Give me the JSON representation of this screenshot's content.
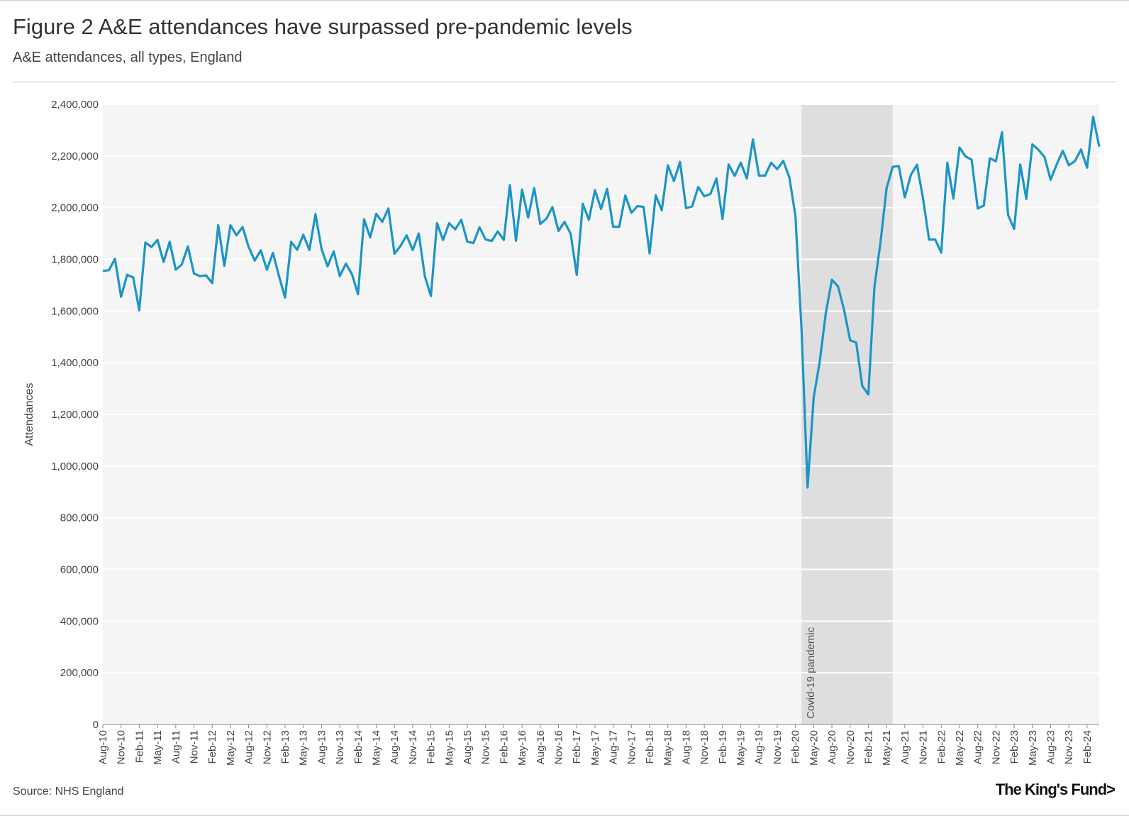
{
  "title": "Figure 2 A&E attendances have surpassed pre-pandemic levels",
  "subtitle": "A&E attendances, all types, England",
  "source": "Source: NHS England",
  "logo_text": "The King's Fund>",
  "colors": {
    "line": "#1b95c7",
    "band": "#dedede",
    "plot_bg": "#f5f5f5",
    "grid": "#ffffff"
  },
  "chart_data": {
    "type": "line",
    "title": "Figure 2 A&E attendances have surpassed pre-pandemic levels",
    "subtitle": "A&E attendances, all types, England",
    "xlabel": "",
    "ylabel": "Attendances",
    "ylim": [
      0,
      2400000
    ],
    "yticks": [
      0,
      200000,
      400000,
      600000,
      800000,
      1000000,
      1200000,
      1400000,
      1600000,
      1800000,
      2000000,
      2200000,
      2400000
    ],
    "ytick_labels": [
      "0",
      "200,000",
      "400,000",
      "600,000",
      "800,000",
      "1,000,000",
      "1,200,000",
      "1,400,000",
      "1,600,000",
      "1,800,000",
      "2,000,000",
      "2,200,000",
      "2,400,000"
    ],
    "x_start": "Aug-10",
    "x_end": "Apr-24",
    "xtick_labels": [
      "Aug-10",
      "Nov-10",
      "Feb-11",
      "May-11",
      "Aug-11",
      "Nov-11",
      "Feb-12",
      "May-12",
      "Aug-12",
      "Nov-12",
      "Feb-13",
      "May-13",
      "Aug-13",
      "Nov-13",
      "Feb-14",
      "May-14",
      "Aug-14",
      "Nov-14",
      "Feb-15",
      "May-15",
      "Aug-15",
      "Nov-15",
      "Feb-16",
      "May-16",
      "Aug-16",
      "Nov-16",
      "Feb-17",
      "May-17",
      "Aug-17",
      "Nov-17",
      "Feb-18",
      "May-18",
      "Aug-18",
      "Nov-18",
      "Feb-19",
      "May-19",
      "Aug-19",
      "Nov-19",
      "Feb-20",
      "May-20",
      "Aug-20",
      "Nov-20",
      "Feb-21",
      "May-21",
      "Aug-21",
      "Nov-21",
      "Feb-22",
      "May-22",
      "Aug-22",
      "Nov-22",
      "Feb-23",
      "May-23",
      "Aug-23",
      "Nov-23",
      "Feb-24"
    ],
    "shaded_region": {
      "label": "Covid-19 pandemic",
      "start_index": 115,
      "end_index": 130
    },
    "series": [
      {
        "name": "A&E attendances",
        "values": [
          1755000,
          1758000,
          1802000,
          1655000,
          1740000,
          1730000,
          1603000,
          1865000,
          1848000,
          1875000,
          1790000,
          1868000,
          1760000,
          1780000,
          1850000,
          1745000,
          1735000,
          1738000,
          1708000,
          1932000,
          1775000,
          1932000,
          1893000,
          1925000,
          1848000,
          1795000,
          1835000,
          1760000,
          1825000,
          1735000,
          1652000,
          1868000,
          1837000,
          1895000,
          1836000,
          1975000,
          1840000,
          1773000,
          1831000,
          1735000,
          1783000,
          1743000,
          1665000,
          1955000,
          1885000,
          1976000,
          1945000,
          1997000,
          1822000,
          1852000,
          1893000,
          1836000,
          1900000,
          1735000,
          1658000,
          1940000,
          1875000,
          1940000,
          1916000,
          1953000,
          1868000,
          1863000,
          1924000,
          1877000,
          1871000,
          1908000,
          1875000,
          2087000,
          1872000,
          2070000,
          1962000,
          2076000,
          1937000,
          1957000,
          2002000,
          1910000,
          1945000,
          1899000,
          1740000,
          2015000,
          1953000,
          2068000,
          1995000,
          2073000,
          1926000,
          1926000,
          2047000,
          1980000,
          2006000,
          2003000,
          1823000,
          2048000,
          1990000,
          2164000,
          2103000,
          2177000,
          1998000,
          2005000,
          2080000,
          2044000,
          2053000,
          2113000,
          1956000,
          2167000,
          2123000,
          2174000,
          2113000,
          2264000,
          2124000,
          2124000,
          2174000,
          2149000,
          2181000,
          2117000,
          1968000,
          1530000,
          917000,
          1265000,
          1405000,
          1592000,
          1721000,
          1696000,
          1605000,
          1487000,
          1478000,
          1310000,
          1277000,
          1693000,
          1866000,
          2075000,
          2158000,
          2161000,
          2040000,
          2127000,
          2166000,
          2036000,
          1876000,
          1877000,
          1826000,
          2174000,
          2035000,
          2233000,
          2198000,
          2186000,
          1997000,
          2008000,
          2191000,
          2180000,
          2292000,
          1972000,
          1918000,
          2167000,
          2034000,
          2245000,
          2224000,
          2196000,
          2108000,
          2167000,
          2220000,
          2164000,
          2180000,
          2225000,
          2155000,
          2352000,
          2236000
        ]
      }
    ]
  }
}
